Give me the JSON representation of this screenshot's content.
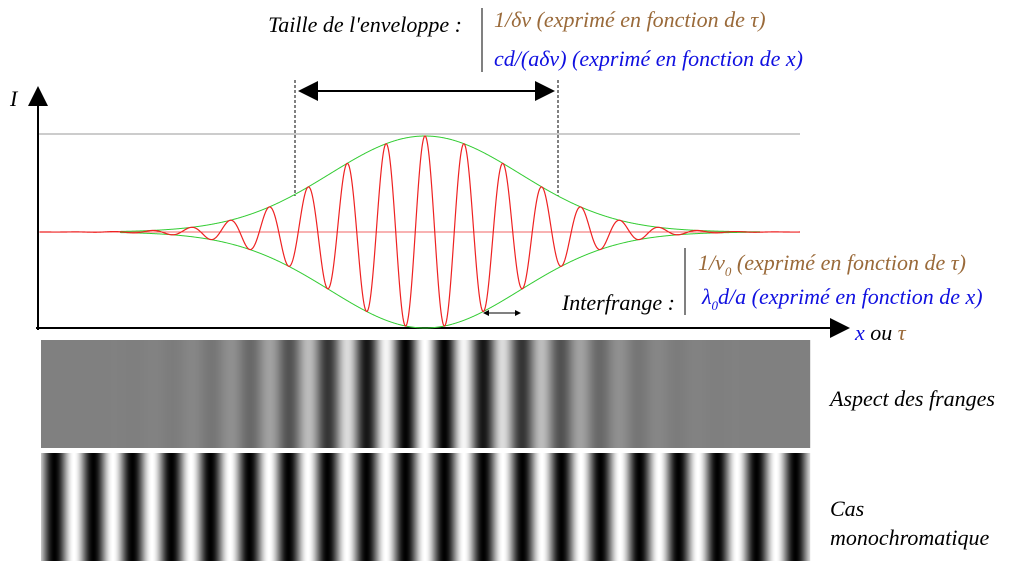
{
  "envelope": {
    "label": "Taille de l'enveloppe :",
    "tau": "1/δν (exprimé en fonction de τ)",
    "x": "cd/(aδν) (exprimé en fonction de x)"
  },
  "axes": {
    "y": "I",
    "x": "x",
    "or": "ou",
    "tau": "τ"
  },
  "interfringe": {
    "label": "Interfrange :",
    "tau": {
      "main": "1/ν",
      "sub": "0",
      "rest": " (exprimé en fonction de τ)"
    },
    "x": {
      "main": "λ",
      "sub": "0",
      "rest": "d/a (exprimé en fonction de x)"
    }
  },
  "fringes": {
    "aspect": "Aspect des franges",
    "mono": [
      "Cas",
      "monochromatique"
    ]
  }
}
